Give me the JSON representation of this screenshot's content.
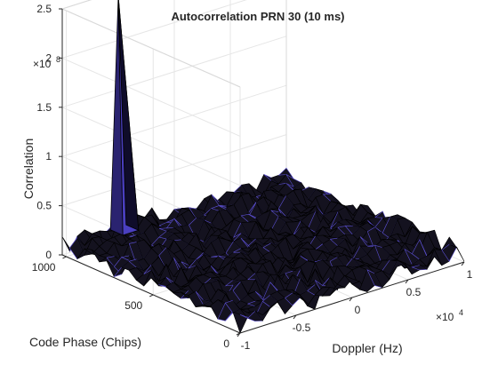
{
  "chart_data": {
    "type": "surface",
    "title": "Autocorrelation PRN 30 (10 ms)",
    "xlabel": "Doppler (Hz)",
    "ylabel": "Code Phase (Chips)",
    "zlabel": "Correlation",
    "x_ticks": [
      "-1",
      "-0.5",
      "0",
      "0.5",
      "1"
    ],
    "x_exponent": {
      "base": "×10",
      "power": "4"
    },
    "y_ticks": [
      "0",
      "500",
      "1000"
    ],
    "z_ticks": [
      "0",
      "0.5",
      "1",
      "1.5",
      "2",
      "2.5"
    ],
    "z_exponent": {
      "base": "×10",
      "power": "8"
    },
    "xlim": [
      -10000,
      10000
    ],
    "ylim": [
      0,
      1023
    ],
    "zlim": [
      0,
      250000000
    ],
    "grid": true,
    "surface_color": "#14121f",
    "surface_highlight": "#5b4fd1",
    "peak": {
      "doppler_hz": -5000,
      "code_phase_chips": 1023,
      "correlation": 245000000
    },
    "noise_floor": 20000000
  }
}
